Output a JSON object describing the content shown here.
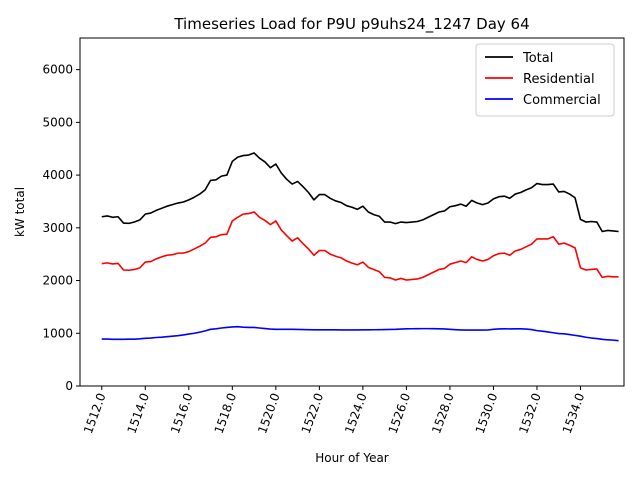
{
  "chart_data": {
    "type": "line",
    "title": "Timeseries Load for P9U p9uhs24_1247  Day 64",
    "xlabel": "Hour of Year",
    "ylabel": "kW total",
    "xlim": [
      1511.0,
      1536.0
    ],
    "ylim": [
      0,
      6600
    ],
    "x_ticks": [
      1512,
      1514,
      1516,
      1518,
      1520,
      1522,
      1524,
      1526,
      1528,
      1530,
      1532,
      1534
    ],
    "x_tick_labels": [
      "1512.0",
      "1514.0",
      "1516.0",
      "1518.0",
      "1520.0",
      "1522.0",
      "1524.0",
      "1526.0",
      "1528.0",
      "1530.0",
      "1532.0",
      "1534.0"
    ],
    "y_ticks": [
      0,
      1000,
      2000,
      3000,
      4000,
      5000,
      6000
    ],
    "y_tick_labels": [
      "0",
      "1000",
      "2000",
      "3000",
      "4000",
      "5000",
      "6000"
    ],
    "legend_position": "top-right",
    "grid": false,
    "x": [
      1512.0,
      1512.25,
      1512.5,
      1512.75,
      1513.0,
      1513.25,
      1513.5,
      1513.75,
      1514.0,
      1514.25,
      1514.5,
      1514.75,
      1515.0,
      1515.25,
      1515.5,
      1515.75,
      1516.0,
      1516.25,
      1516.5,
      1516.75,
      1517.0,
      1517.25,
      1517.5,
      1517.75,
      1518.0,
      1518.25,
      1518.5,
      1518.75,
      1519.0,
      1519.25,
      1519.5,
      1519.75,
      1520.0,
      1520.25,
      1520.5,
      1520.75,
      1521.0,
      1521.25,
      1521.5,
      1521.75,
      1522.0,
      1522.25,
      1522.5,
      1522.75,
      1523.0,
      1523.25,
      1523.5,
      1523.75,
      1524.0,
      1524.25,
      1524.5,
      1524.75,
      1525.0,
      1525.25,
      1525.5,
      1525.75,
      1526.0,
      1526.25,
      1526.5,
      1526.75,
      1527.0,
      1527.25,
      1527.5,
      1527.75,
      1528.0,
      1528.25,
      1528.5,
      1528.75,
      1529.0,
      1529.25,
      1529.5,
      1529.75,
      1530.0,
      1530.25,
      1530.5,
      1530.75,
      1531.0,
      1531.25,
      1531.5,
      1531.75,
      1532.0,
      1532.25,
      1532.5,
      1532.75,
      1533.0,
      1533.25,
      1533.5,
      1533.75,
      1534.0,
      1534.25,
      1534.5,
      1534.75,
      1535.0,
      1535.25,
      1535.5,
      1535.75
    ],
    "series": [
      {
        "name": "Total",
        "color": "#000000",
        "values": [
          3210,
          3225,
          3200,
          3210,
          3090,
          3085,
          3110,
          3150,
          3260,
          3280,
          3330,
          3370,
          3410,
          3440,
          3470,
          3490,
          3530,
          3580,
          3640,
          3720,
          3900,
          3910,
          3980,
          4000,
          4260,
          4340,
          4370,
          4380,
          4420,
          4320,
          4250,
          4140,
          4210,
          4040,
          3920,
          3830,
          3880,
          3780,
          3670,
          3530,
          3630,
          3630,
          3560,
          3510,
          3480,
          3420,
          3390,
          3350,
          3410,
          3300,
          3250,
          3220,
          3110,
          3110,
          3080,
          3110,
          3100,
          3110,
          3120,
          3150,
          3200,
          3250,
          3300,
          3320,
          3400,
          3420,
          3450,
          3410,
          3520,
          3470,
          3440,
          3470,
          3550,
          3590,
          3600,
          3560,
          3640,
          3670,
          3720,
          3760,
          3840,
          3820,
          3820,
          3830,
          3680,
          3690,
          3640,
          3570,
          3160,
          3110,
          3120,
          3110,
          2930,
          2950,
          2940,
          2930
        ]
      },
      {
        "name": "Residential",
        "color": "#ff0000",
        "values": [
          2320,
          2335,
          2315,
          2325,
          2200,
          2195,
          2210,
          2240,
          2350,
          2360,
          2410,
          2450,
          2480,
          2490,
          2520,
          2520,
          2550,
          2600,
          2650,
          2710,
          2820,
          2830,
          2870,
          2880,
          3130,
          3200,
          3260,
          3270,
          3300,
          3200,
          3140,
          3060,
          3130,
          2960,
          2850,
          2750,
          2810,
          2700,
          2600,
          2480,
          2570,
          2570,
          2500,
          2460,
          2430,
          2370,
          2330,
          2300,
          2350,
          2250,
          2210,
          2170,
          2060,
          2050,
          2010,
          2040,
          2010,
          2020,
          2030,
          2060,
          2110,
          2160,
          2210,
          2230,
          2310,
          2340,
          2370,
          2340,
          2450,
          2400,
          2370,
          2400,
          2470,
          2510,
          2520,
          2480,
          2560,
          2590,
          2640,
          2690,
          2790,
          2790,
          2790,
          2830,
          2690,
          2710,
          2670,
          2620,
          2240,
          2200,
          2210,
          2220,
          2060,
          2080,
          2070,
          2070
        ]
      },
      {
        "name": "Commercial",
        "color": "#0000ff",
        "values": [
          890,
          890,
          885,
          885,
          885,
          888,
          888,
          895,
          905,
          910,
          920,
          925,
          935,
          945,
          955,
          968,
          985,
          1000,
          1020,
          1045,
          1075,
          1085,
          1100,
          1110,
          1120,
          1125,
          1115,
          1110,
          1110,
          1100,
          1090,
          1080,
          1075,
          1075,
          1075,
          1075,
          1073,
          1070,
          1068,
          1066,
          1065,
          1065,
          1065,
          1065,
          1063,
          1063,
          1063,
          1063,
          1065,
          1066,
          1067,
          1068,
          1070,
          1073,
          1075,
          1080,
          1085,
          1086,
          1087,
          1088,
          1088,
          1087,
          1085,
          1082,
          1075,
          1068,
          1063,
          1060,
          1060,
          1060,
          1060,
          1062,
          1075,
          1082,
          1085,
          1083,
          1085,
          1085,
          1080,
          1070,
          1050,
          1040,
          1025,
          1010,
          995,
          990,
          975,
          960,
          945,
          925,
          910,
          900,
          885,
          875,
          870,
          860
        ]
      }
    ]
  }
}
